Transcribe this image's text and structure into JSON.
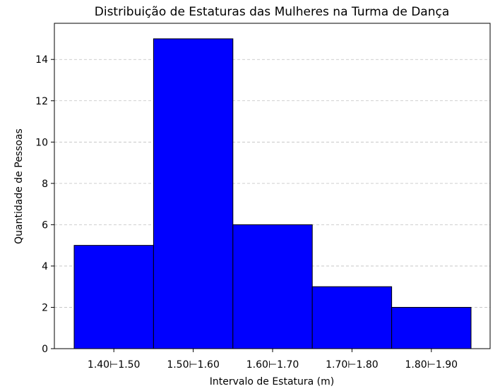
{
  "chart_data": {
    "type": "bar",
    "title": "Distribuição de Estaturas das Mulheres na Turma de Dança",
    "xlabel": "Intervalo de Estatura (m)",
    "ylabel": "Quantidade de Pessoas",
    "categories": [
      "1.40⊢1.50",
      "1.50⊢1.60",
      "1.60⊢1.70",
      "1.70⊢1.80",
      "1.80⊢1.90"
    ],
    "values": [
      5,
      15,
      6,
      3,
      2
    ],
    "ylim": [
      0,
      15.75
    ],
    "yticks": [
      0,
      2,
      4,
      6,
      8,
      10,
      12,
      14
    ],
    "grid": "y-dashed",
    "bar_color": "#0000ff",
    "edge_color": "#000000"
  }
}
